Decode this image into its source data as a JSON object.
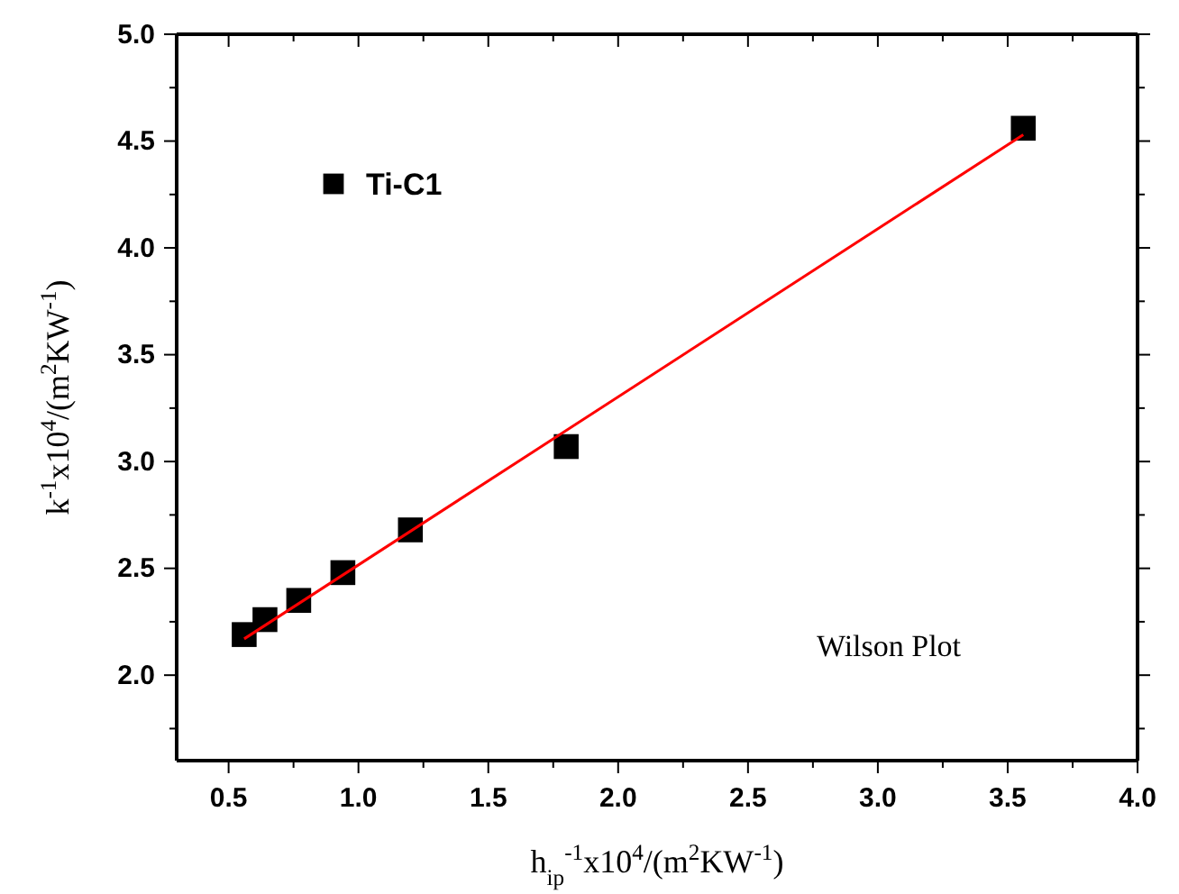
{
  "chart_data": {
    "type": "scatter",
    "xlabel": "h$_{ip}$$^{-1}$x10$^{4}$/(m$^{2}$KW$^{-1}$)",
    "ylabel": "k$^{-1}$x10$^{4}$/(m$^{2}$KW$^{-1}$)",
    "xlim": [
      0.3,
      4.0
    ],
    "ylim": [
      1.6,
      5.0
    ],
    "xticks": [
      0.5,
      {
        "value": 0.75,
        "label": null
      },
      {
        "value": 1,
        "label": "1.0"
      },
      {
        "value": 1.25,
        "label": null
      },
      1.5,
      {
        "value": 1.75,
        "label": null
      },
      {
        "value": 2,
        "label": "2.0"
      },
      {
        "value": 2.25,
        "label": null
      },
      2.5,
      {
        "value": 2.75,
        "label": null
      },
      {
        "value": 3,
        "label": "3.0"
      },
      {
        "value": 3.25,
        "label": null
      },
      3.5,
      {
        "value": 3.75,
        "label": null
      },
      {
        "value": 4,
        "label": "4.0"
      }
    ],
    "yticks": [
      {
        "value": 1.75,
        "label": null
      },
      {
        "value": 2,
        "label": "2.0"
      },
      {
        "value": 2.25,
        "label": null
      },
      2.5,
      {
        "value": 2.75,
        "label": null
      },
      {
        "value": 3,
        "label": "3.0"
      },
      {
        "value": 3.25,
        "label": null
      },
      3.5,
      {
        "value": 3.75,
        "label": null
      },
      {
        "value": 4,
        "label": "4.0"
      },
      {
        "value": 4.25,
        "label": null
      },
      4.5,
      {
        "value": 4.75,
        "label": null
      },
      {
        "value": 5,
        "label": "5.0"
      }
    ],
    "series": [
      {
        "name": "Ti-C1",
        "color": "#000000",
        "marker": "square",
        "x": [
          0.56,
          0.64,
          0.77,
          0.94,
          1.2,
          1.8,
          3.56
        ],
        "values": [
          2.19,
          2.26,
          2.35,
          2.48,
          2.68,
          3.07,
          4.56
        ]
      },
      {
        "type": "line",
        "color": "#ff0000",
        "marker": "none",
        "line_style": "solid",
        "x": [
          0.56,
          3.56
        ],
        "values": [
          2.17,
          4.53
        ]
      }
    ],
    "legend": "top left",
    "grid": false,
    "annotations": [
      "Wilson Plot"
    ]
  }
}
